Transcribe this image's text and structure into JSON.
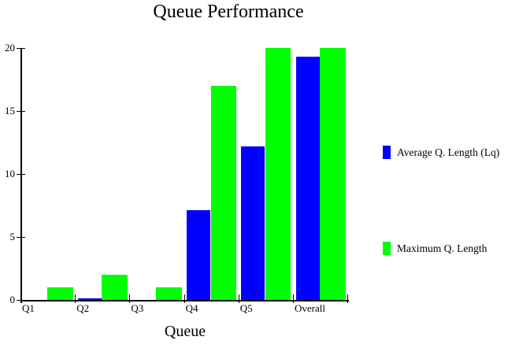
{
  "chart_data": {
    "type": "bar",
    "title": "Queue Performance",
    "xlabel": "Queue",
    "ylabel": "",
    "categories": [
      "Q1",
      "Q2",
      "Q3",
      "Q4",
      "Q5",
      "Overall"
    ],
    "series": [
      {
        "name": "Average Q. Length (Lq)",
        "color": "#0000FF",
        "values": [
          0,
          0.1,
          0,
          7.1,
          12.2,
          19.3
        ]
      },
      {
        "name": "Maximum Q. Length",
        "color": "#00FF00",
        "values": [
          1,
          2,
          1,
          17,
          20,
          20
        ]
      }
    ],
    "y_ticks": [
      0,
      5,
      10,
      15,
      20
    ],
    "ylim": [
      0,
      20
    ],
    "grid": false,
    "legend_position": "right",
    "background": "#FFFFFF",
    "axis_color": "#000000",
    "text_color": "#000000"
  }
}
